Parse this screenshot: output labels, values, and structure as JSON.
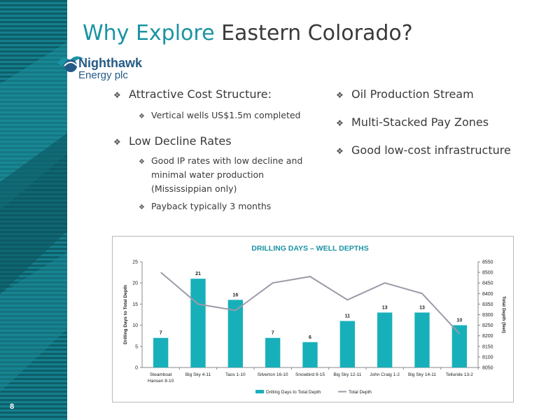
{
  "slide": {
    "title_highlight": "Why Explore",
    "title_rest": "Eastern Colorado?",
    "page_number": "8"
  },
  "logo": {
    "line1": "Nighthawk",
    "line2": "Energy plc"
  },
  "bullets": {
    "b1": "Attractive Cost Structure:",
    "b1a": "Vertical wells US$1.5m completed",
    "b2": "Low Decline Rates",
    "b2a_line1": "Good IP rates with low decline and",
    "b2a_line2": "minimal water production",
    "b2a_line3": "(Mississippian only)",
    "b2b": "Payback typically 3 months",
    "r1": "Oil Production  Stream",
    "r2": "Multi-Stacked Pay Zones",
    "r3": "Good low-cost infrastructure"
  },
  "colors": {
    "sidebar": "#12707c",
    "accent": "#1a93a3",
    "bar": "#17b0ba",
    "line": "#9e9aa8"
  },
  "chart_data": {
    "type": "bar",
    "title": "DRILLING DAYS – WELL DEPTHS",
    "categories": [
      [
        "Steamboat",
        "Hansen 8-10"
      ],
      [
        "Big Sky 4-11"
      ],
      [
        "Taos 1-10"
      ],
      [
        "Silverton 16-10"
      ],
      [
        "Snowbird 9-15"
      ],
      [
        "Big Sky 12-11"
      ],
      [
        "John Craig 1-2"
      ],
      [
        "Big Sky 14-11"
      ],
      [
        "Telluride 13-2"
      ]
    ],
    "series": [
      {
        "name": "Drilling Days to Total Depth",
        "type": "bar",
        "axis": "left",
        "values": [
          7,
          21,
          16,
          7,
          6,
          11,
          13,
          13,
          10
        ]
      },
      {
        "name": "Total Depth",
        "type": "line",
        "axis": "right",
        "values": [
          8500,
          8350,
          8320,
          8450,
          8480,
          8370,
          8450,
          8400,
          8210
        ]
      }
    ],
    "ylabel": "Drilling Days to Total Depth",
    "y2label": "Total Depth (feet)",
    "ylim": [
      0,
      25
    ],
    "yticks": [
      0,
      5,
      10,
      15,
      20,
      25
    ],
    "y2lim": [
      8050,
      8550
    ],
    "y2ticks": [
      8050,
      8100,
      8150,
      8200,
      8250,
      8300,
      8350,
      8400,
      8450,
      8500,
      8550
    ],
    "legend_position": "bottom",
    "grid": false
  }
}
